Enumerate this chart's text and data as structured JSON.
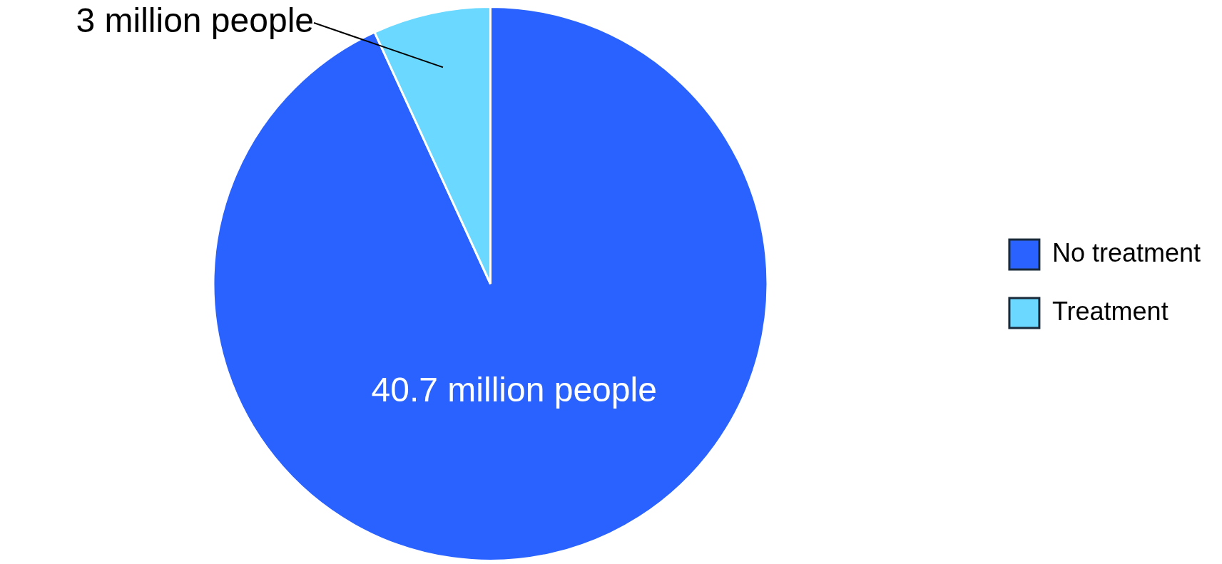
{
  "chart_data": {
    "type": "pie",
    "categories": [
      "No treatment",
      "Treatment"
    ],
    "values": [
      40.7,
      3
    ],
    "colors": [
      "#2962ff",
      "#6ad8ff"
    ],
    "value_labels": [
      "40.7 million people",
      "3 million people"
    ],
    "legend": "right"
  }
}
